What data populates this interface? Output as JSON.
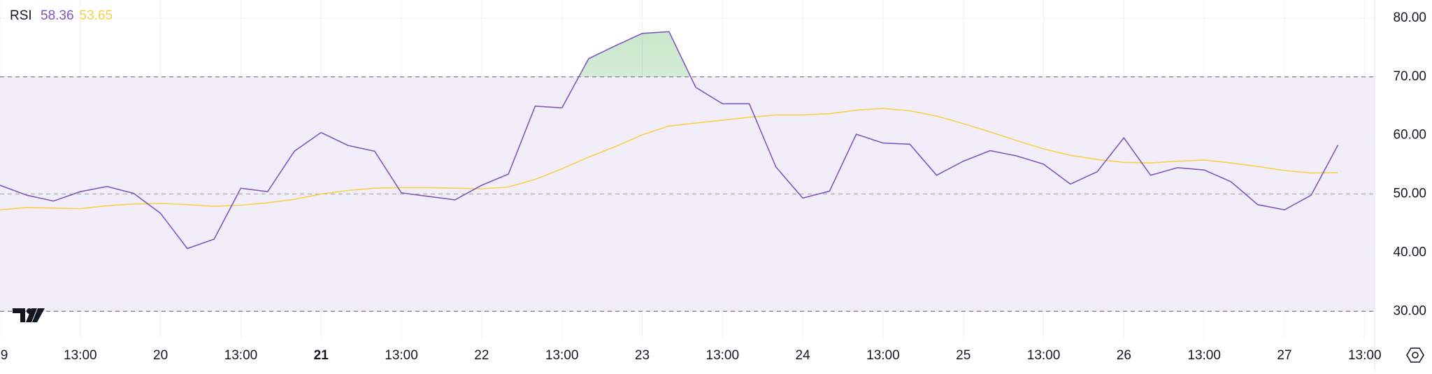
{
  "chart_data": {
    "type": "line",
    "title": "RSI",
    "legend_values": [
      "58.36",
      "53.65"
    ],
    "categories": [
      "9",
      null,
      null,
      "13:00",
      null,
      null,
      "20",
      null,
      null,
      "13:00",
      null,
      null,
      "21",
      null,
      null,
      "13:00",
      null,
      null,
      "22",
      null,
      null,
      "13:00",
      null,
      null,
      "23",
      null,
      null,
      "13:00",
      null,
      null,
      "24",
      null,
      null,
      "13:00",
      null,
      null,
      "25",
      null,
      null,
      "13:00",
      null,
      null,
      "26",
      null,
      null,
      "13:00",
      null,
      null,
      "27",
      null,
      null,
      "13:00"
    ],
    "bold_categories": [
      12
    ],
    "series": [
      {
        "color": "#7e57c2",
        "values": [
          51.5,
          49.8,
          48.8,
          50.4,
          51.3,
          50.1,
          46.7,
          40.7,
          42.3,
          51.0,
          50.4,
          57.3,
          60.5,
          58.3,
          57.3,
          50.2,
          49.6,
          49.0,
          51.5,
          53.4,
          65.0,
          64.7,
          73.1,
          75.3,
          77.4,
          77.7,
          68.2,
          65.4,
          65.4,
          54.6,
          49.3,
          50.5,
          60.2,
          58.7,
          58.5,
          53.2,
          55.6,
          57.4,
          56.5,
          55.1,
          51.7,
          53.8,
          59.6,
          53.2,
          54.5,
          54.1,
          52.1,
          48.2,
          47.3,
          49.8,
          58.36,
          null
        ]
      },
      {
        "color": "#f7d14b",
        "values": [
          47.3,
          47.7,
          47.6,
          47.5,
          48.0,
          48.3,
          48.4,
          48.2,
          47.9,
          48.1,
          48.5,
          49.1,
          50.0,
          50.6,
          51.0,
          51.1,
          51.1,
          51.0,
          50.9,
          51.2,
          52.5,
          54.3,
          56.3,
          58.1,
          60.1,
          61.6,
          62.1,
          62.6,
          63.1,
          63.5,
          63.5,
          63.7,
          64.3,
          64.6,
          64.2,
          63.3,
          62.0,
          60.6,
          59.1,
          57.7,
          56.6,
          55.9,
          55.4,
          55.3,
          55.6,
          55.8,
          55.3,
          54.7,
          54.0,
          53.6,
          53.65,
          null
        ]
      }
    ],
    "bands": {
      "upper": 70,
      "middle": 50,
      "lower": 30
    },
    "ylim": [
      25.5,
      83.1
    ],
    "yticks": [
      {
        "value": 30,
        "label": "30.00"
      },
      {
        "value": 40,
        "label": "40.00"
      },
      {
        "value": 50,
        "label": "50.00"
      },
      {
        "value": 60,
        "label": "60.00"
      },
      {
        "value": 70,
        "label": "70.00"
      },
      {
        "value": 80,
        "label": "80.00"
      }
    ],
    "grid": true
  }
}
